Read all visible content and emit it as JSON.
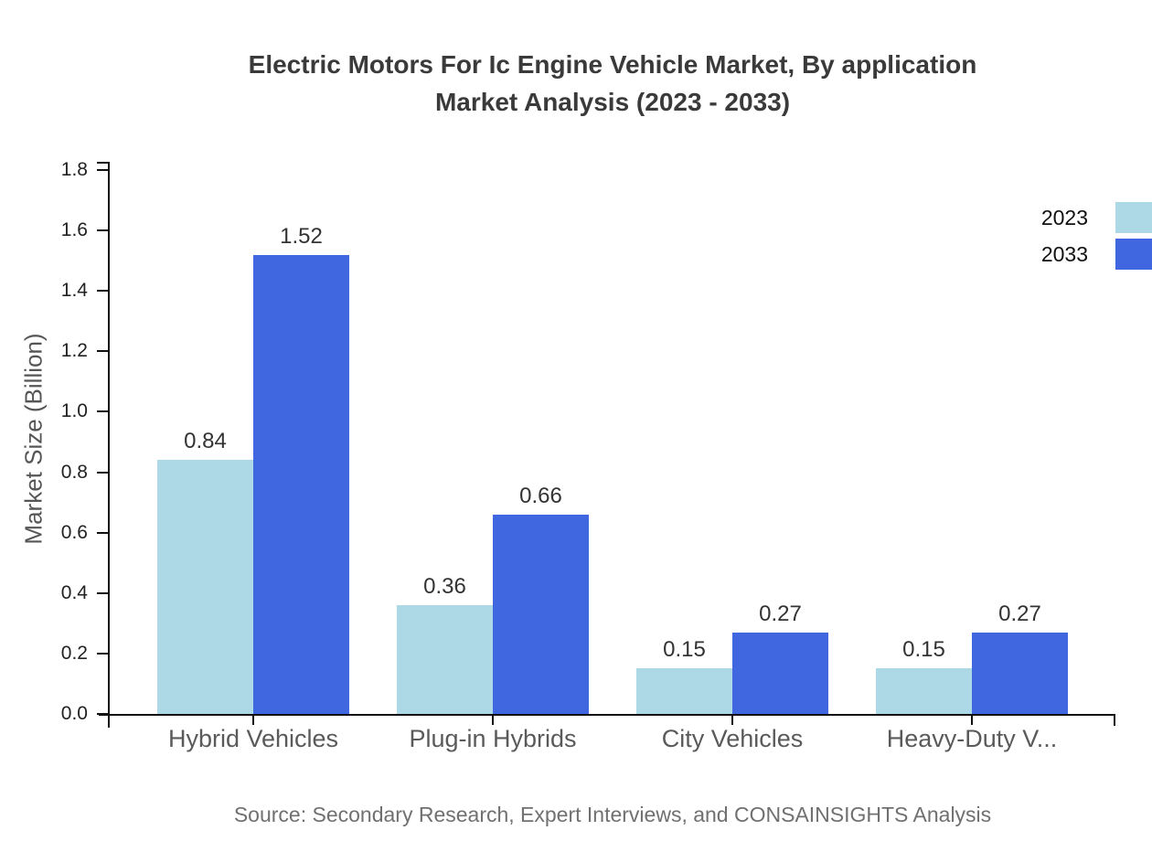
{
  "title": {
    "line1": "Electric Motors For Ic Engine Vehicle Market, By application",
    "line2": "Market Analysis (2023 - 2033)"
  },
  "legend": {
    "items": [
      {
        "label": "2023",
        "color": "#add8e6"
      },
      {
        "label": "2033",
        "color": "#4066e0"
      }
    ]
  },
  "axes": {
    "y_label": "Market Size (Billion)",
    "ylim": [
      0,
      1.8
    ],
    "ytick_step": 0.2
  },
  "source_note": "Source: Secondary Research, Expert Interviews, and CONSAINSIGHTS Analysis",
  "chart_data": {
    "type": "bar",
    "title": "Electric Motors For Ic Engine Vehicle Market, By application Market Analysis (2023 - 2033)",
    "categories": [
      "Hybrid Vehicles",
      "Plug-in Hybrids",
      "City Vehicles",
      "Heavy-Duty V..."
    ],
    "series": [
      {
        "name": "2023",
        "color": "#add8e6",
        "values": [
          0.84,
          0.36,
          0.15,
          0.15
        ]
      },
      {
        "name": "2033",
        "color": "#4066e0",
        "values": [
          1.52,
          0.66,
          0.27,
          0.27
        ]
      }
    ],
    "xlabel": "",
    "ylabel": "Market Size (Billion)",
    "ylim": [
      0,
      1.8
    ],
    "ytick_step": 0.2,
    "grid": false,
    "legend_position": "top-right",
    "bar_value_labels": true
  }
}
